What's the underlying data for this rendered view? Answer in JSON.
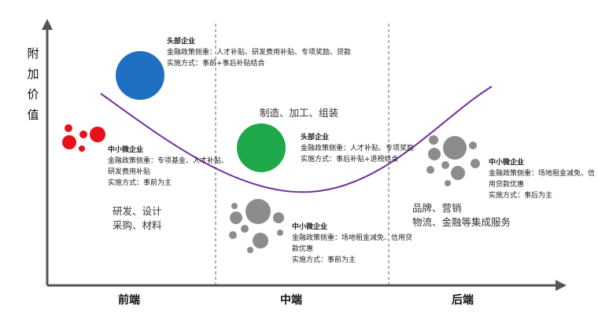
{
  "y_axis_label": [
    "附",
    "加",
    "价",
    "值"
  ],
  "x_axis_labels": {
    "front": "前端",
    "middle": "中端",
    "back": "后端"
  },
  "colors": {
    "blue": "#1f6fc2",
    "green": "#1ea84a",
    "red": "#e8101a",
    "gray": "#8c8c8c",
    "curve": "#7030a0"
  },
  "front_small": {
    "title": "中小微企业",
    "policy_1": "金融政策侧重：专项基金、人才补贴、",
    "policy_2": "研发费用补贴",
    "method": "实施方式：事前为主"
  },
  "front_big": {
    "title": "头部企业",
    "policy": "金融政策侧重：人才补贴、研发费用补贴、专项奖励、贷款",
    "method": "实施方式：事前+事后补贴结合"
  },
  "front_activity": {
    "line1": "研发、设计",
    "line2": "采购、材料"
  },
  "middle_title": "制造、加工、组装",
  "middle_big": {
    "title": "头部企业",
    "policy": "金融政策侧重：人才补贴、专项奖励",
    "method": "实施方式：事后补贴+退税结合"
  },
  "middle_small": {
    "title": "中小微企业",
    "policy_1": "金融政策侧重：场地租金减免、信用贷",
    "policy_2": "款优惠",
    "method": "实施方式：事前为主"
  },
  "back_activity": {
    "line1": "品牌、营销",
    "line2": "物流、金融等集成服务"
  },
  "back_small": {
    "title": "中小微企业",
    "policy_1": "金融政策侧重：场地租金减免、信",
    "policy_2": "用贷款优惠",
    "method": "实施方式：事后为主"
  }
}
